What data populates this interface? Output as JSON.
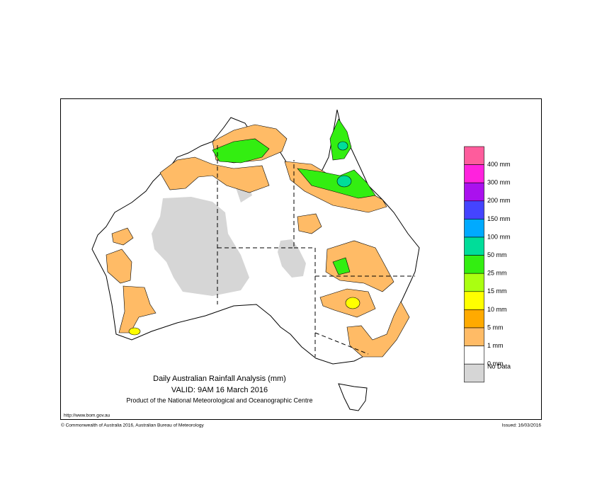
{
  "header": {
    "title": "Daily Australian Rainfall Analysis (mm)",
    "valid": "VALID: 9AM 16 March 2016",
    "product": "Product of the National Meteorological and Oceanographic Centre"
  },
  "legend": {
    "colors": [
      "#fe5c9c",
      "#ff22dd",
      "#aa11ee",
      "#4444ff",
      "#00aaff",
      "#00dd99",
      "#33ee11",
      "#aaff11",
      "#ffff00",
      "#ffaa00",
      "#ffbb66",
      "#ffffff",
      "#d6d6d6"
    ],
    "labels": [
      "400 mm",
      "300 mm",
      "200 mm",
      "150 mm",
      "100 mm",
      "50 mm",
      "25 mm",
      "15 mm",
      "10 mm",
      "5 mm",
      "1 mm",
      "0 mm"
    ],
    "no_data_label": "No Data"
  },
  "footer": {
    "url": "http://www.bom.gov.au",
    "copyright": "© Commonwealth of Australia 2016, Australian Bureau of Meteorology",
    "issued": "Issued: 16/03/2016"
  }
}
